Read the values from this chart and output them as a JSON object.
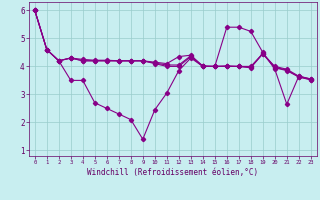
{
  "title": "",
  "xlabel": "Windchill (Refroidissement éolien,°C)",
  "ylabel": "",
  "bg_color": "#c8eef0",
  "line_color": "#880088",
  "grid_color": "#99cccc",
  "axis_color": "#660066",
  "xlim": [
    -0.5,
    23.5
  ],
  "ylim": [
    0.8,
    6.3
  ],
  "xticks": [
    0,
    1,
    2,
    3,
    4,
    5,
    6,
    7,
    8,
    9,
    10,
    11,
    12,
    13,
    14,
    15,
    16,
    17,
    18,
    19,
    20,
    21,
    22,
    23
  ],
  "yticks": [
    1,
    2,
    3,
    4,
    5,
    6
  ],
  "series1": [
    6.0,
    4.6,
    4.2,
    4.3,
    4.2,
    4.2,
    4.2,
    4.2,
    4.2,
    4.2,
    4.15,
    4.1,
    4.35,
    4.4,
    4.0,
    4.0,
    4.0,
    4.0,
    4.0,
    4.45,
    4.0,
    3.9,
    3.65,
    3.55
  ],
  "series2": [
    6.0,
    4.6,
    4.2,
    3.5,
    3.5,
    2.7,
    2.5,
    2.3,
    2.1,
    1.4,
    2.45,
    3.05,
    3.85,
    4.3,
    4.0,
    4.0,
    5.4,
    5.4,
    5.25,
    4.5,
    3.9,
    2.65,
    3.65,
    3.55
  ],
  "series3": [
    6.0,
    4.6,
    4.2,
    4.3,
    4.2,
    4.2,
    4.2,
    4.2,
    4.2,
    4.2,
    4.1,
    4.0,
    4.0,
    4.35,
    4.0,
    4.0,
    4.0,
    4.0,
    3.95,
    4.45,
    3.95,
    3.85,
    3.62,
    3.52
  ],
  "series4": [
    6.0,
    4.6,
    4.2,
    4.3,
    4.25,
    4.22,
    4.22,
    4.2,
    4.2,
    4.2,
    4.12,
    4.05,
    4.05,
    4.38,
    4.02,
    4.0,
    4.02,
    4.0,
    3.97,
    4.47,
    3.97,
    3.87,
    3.63,
    3.53
  ]
}
